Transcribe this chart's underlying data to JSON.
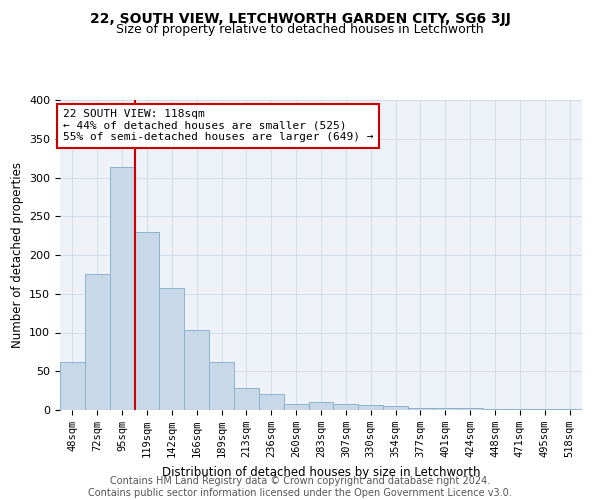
{
  "title": "22, SOUTH VIEW, LETCHWORTH GARDEN CITY, SG6 3JJ",
  "subtitle": "Size of property relative to detached houses in Letchworth",
  "xlabel": "Distribution of detached houses by size in Letchworth",
  "ylabel": "Number of detached properties",
  "categories": [
    "48sqm",
    "72sqm",
    "95sqm",
    "119sqm",
    "142sqm",
    "166sqm",
    "189sqm",
    "213sqm",
    "236sqm",
    "260sqm",
    "283sqm",
    "307sqm",
    "330sqm",
    "354sqm",
    "377sqm",
    "401sqm",
    "424sqm",
    "448sqm",
    "471sqm",
    "495sqm",
    "518sqm"
  ],
  "values": [
    62,
    175,
    313,
    230,
    158,
    103,
    62,
    28,
    21,
    8,
    10,
    8,
    7,
    5,
    3,
    2,
    2,
    1,
    1,
    1,
    1
  ],
  "bar_color": "#c8d8e8",
  "bar_edge_color": "#8ab4cc",
  "vline_index": 3,
  "vline_color": "#cc0000",
  "annotation_box_color": "#ffffff",
  "annotation_box_edge": "#cc0000",
  "annotation_lines": [
    "22 SOUTH VIEW: 118sqm",
    "← 44% of detached houses are smaller (525)",
    "55% of semi-detached houses are larger (649) →"
  ],
  "annotation_fontsize": 8,
  "ylim": [
    0,
    400
  ],
  "yticks": [
    0,
    50,
    100,
    150,
    200,
    250,
    300,
    350,
    400
  ],
  "grid_color": "#d0dce8",
  "bg_color": "#eef2f8",
  "footer": "Contains HM Land Registry data © Crown copyright and database right 2024.\nContains public sector information licensed under the Open Government Licence v3.0.",
  "title_fontsize": 10,
  "subtitle_fontsize": 9,
  "xlabel_fontsize": 8.5,
  "ylabel_fontsize": 8.5,
  "footer_fontsize": 7,
  "tick_fontsize": 7.5,
  "ytick_fontsize": 8
}
